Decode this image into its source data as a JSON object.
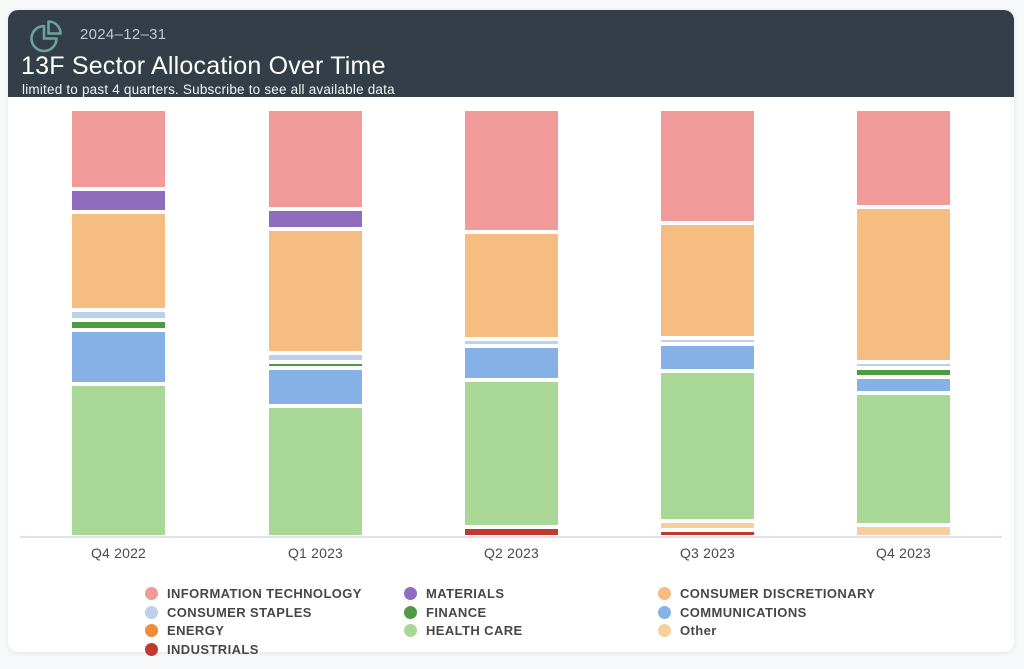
{
  "page": {
    "background": "#f7f8f9",
    "card_background": "#ffffff"
  },
  "header": {
    "background": "#333e48",
    "icon": "pie-chart-icon",
    "icon_color": "#6ba49b",
    "date": "2024–12–31",
    "title": "13F Sector Allocation Over Time",
    "subtitle": "limited to past 4 quarters. Subscribe to see all available data",
    "title_color": "#ffffff",
    "date_color": "#c2c9cf"
  },
  "chart_data": {
    "type": "bar",
    "variant": "stacked-percentage",
    "title": "13F Sector Allocation Over Time",
    "xlabel": "",
    "ylabel": "",
    "unit": "percent of portfolio",
    "ylim": [
      0,
      100
    ],
    "grid": false,
    "y_axis_labels_visible": false,
    "legend_position": "bottom",
    "categories": [
      "Q4 2022",
      "Q1 2023",
      "Q2 2023",
      "Q3 2023",
      "Q4 2023"
    ],
    "stack_order_top_to_bottom": [
      "INFORMATION TECHNOLOGY",
      "MATERIALS",
      "CONSUMER DISCRETIONARY",
      "CONSUMER STAPLES",
      "FINANCE",
      "COMMUNICATIONS",
      "HEALTH CARE",
      "Other",
      "INDUSTRIALS"
    ],
    "series": [
      {
        "name": "INFORMATION TECHNOLOGY",
        "color": "#f09a9a",
        "values": [
          19.0,
          24.0,
          29.5,
          27.5,
          23.5
        ]
      },
      {
        "name": "MATERIALS",
        "color": "#8f6cbd",
        "values": [
          4.8,
          4.0,
          0,
          0,
          0
        ]
      },
      {
        "name": "CONSUMER DISCRETIONARY",
        "color": "#f5bd82",
        "values": [
          23.5,
          30.0,
          25.5,
          27.7,
          37.8
        ]
      },
      {
        "name": "CONSUMER STAPLES",
        "color": "#bccfec",
        "values": [
          1.5,
          1.2,
          0.8,
          0.5,
          0.5
        ]
      },
      {
        "name": "FINANCE",
        "color": "#4e9b41",
        "values": [
          1.5,
          0.5,
          0,
          0,
          1.1
        ]
      },
      {
        "name": "COMMUNICATIONS",
        "color": "#85b1e6",
        "values": [
          12.5,
          8.5,
          7.3,
          5.8,
          3.2
        ]
      },
      {
        "name": "HEALTH CARE",
        "color": "#a9d795",
        "values": [
          37.2,
          31.8,
          35.4,
          36.6,
          31.9
        ]
      },
      {
        "name": "Other",
        "color": "#f7cf9f",
        "values": [
          0,
          0,
          0,
          1.2,
          2.0
        ]
      },
      {
        "name": "INDUSTRIALS",
        "color": "#c03a2e",
        "values": [
          0,
          0,
          1.5,
          0.7,
          0
        ]
      },
      {
        "name": "ENERGY",
        "color": "#ef8b39",
        "values": [
          0,
          0,
          0,
          0,
          0
        ]
      }
    ]
  },
  "legend": {
    "columns": [
      [
        "INFORMATION TECHNOLOGY",
        "CONSUMER STAPLES",
        "ENERGY",
        "INDUSTRIALS"
      ],
      [
        "MATERIALS",
        "FINANCE",
        "HEALTH CARE"
      ],
      [
        "CONSUMER DISCRETIONARY",
        "COMMUNICATIONS",
        "Other"
      ]
    ]
  }
}
